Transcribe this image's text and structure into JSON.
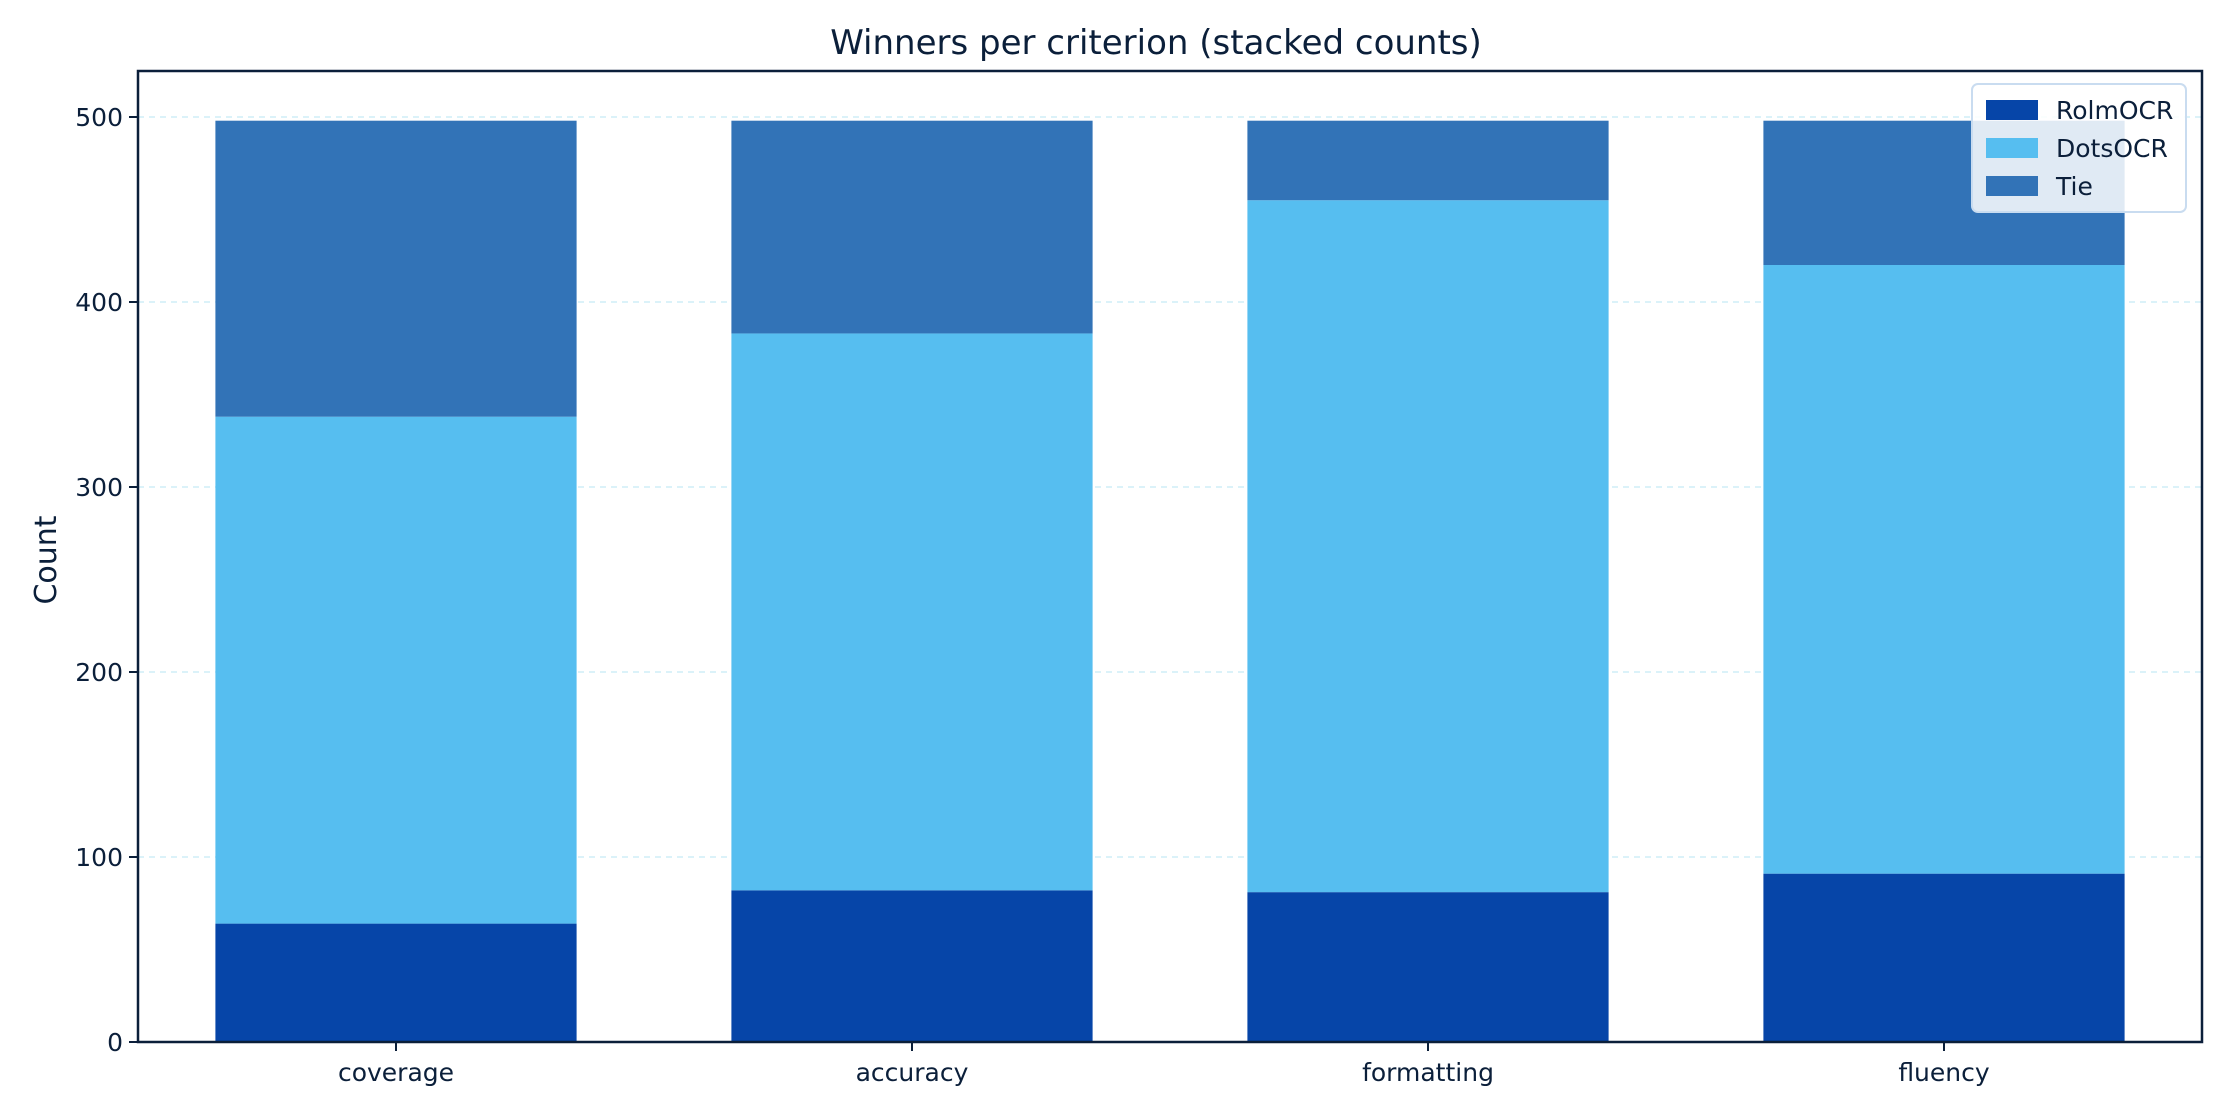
{
  "chart_data": {
    "type": "bar",
    "stacked": true,
    "title": "Winners per criterion (stacked counts)",
    "xlabel": "",
    "ylabel": "Count",
    "categories": [
      "coverage",
      "accuracy",
      "formatting",
      "fluency"
    ],
    "series": [
      {
        "name": "RolmOCR",
        "color": "#0645a8",
        "values": [
          64,
          82,
          81,
          91
        ]
      },
      {
        "name": "DotsOCR",
        "color": "#56bef0",
        "values": [
          274,
          301,
          374,
          329
        ]
      },
      {
        "name": "Tie",
        "color": "#3273b7",
        "values": [
          160,
          115,
          43,
          78
        ]
      }
    ],
    "ylim": [
      0,
      500
    ],
    "yticks": [
      0,
      100,
      200,
      300,
      400,
      500
    ],
    "grid": true,
    "legend_position": "top-right"
  }
}
